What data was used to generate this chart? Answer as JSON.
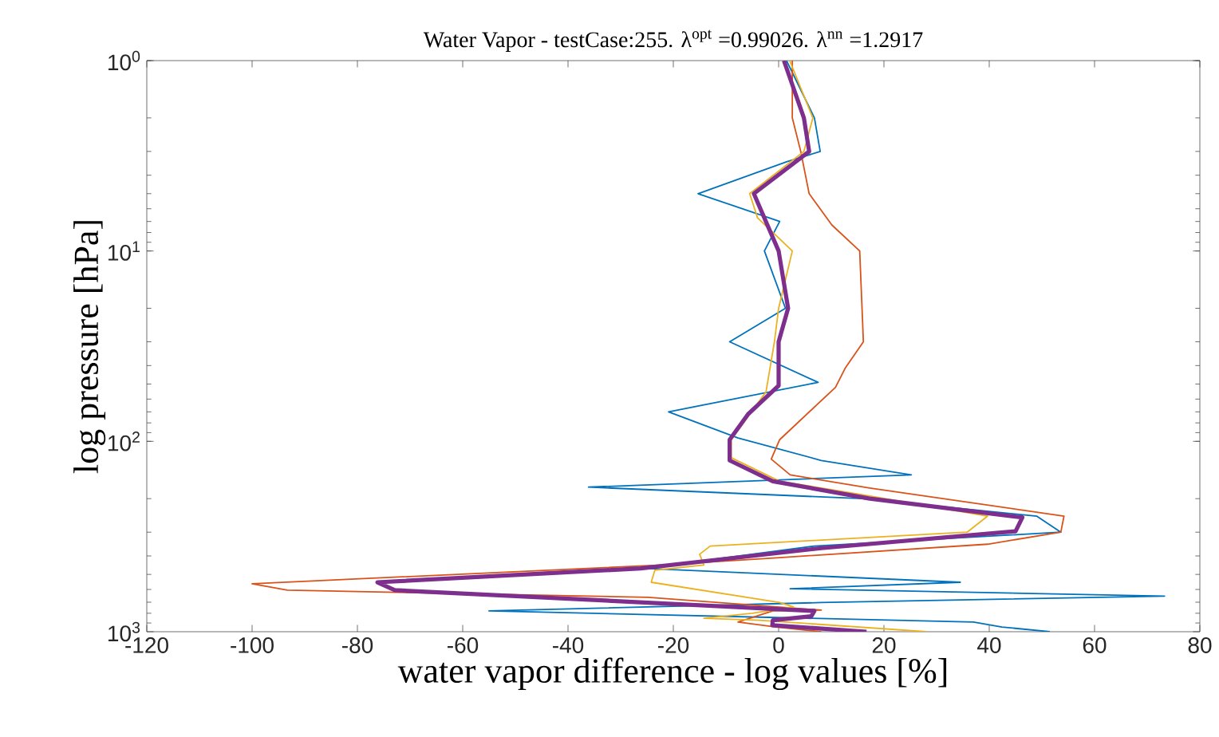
{
  "chart_data": {
    "type": "line",
    "title": "Water Vapor - testCase:255. λ$^{opt}$ =0.99026. λ$^{nn}$ =1.2917",
    "xlabel": "water vapor difference - log values [%]",
    "ylabel": "log pressure [hPa]",
    "log": "y",
    "xlim": [
      -120,
      80
    ],
    "xticks": [
      -120,
      -100,
      -80,
      -60,
      -40,
      -20,
      0,
      20,
      40,
      60,
      80
    ],
    "ylim": [
      1000,
      1
    ],
    "yticks": [
      {
        "value": 1,
        "label": "10$^{0}$"
      },
      {
        "value": 10,
        "label": "10$^{1}$"
      },
      {
        "value": 100,
        "label": "10$^{2}$"
      },
      {
        "value": 1000,
        "label": "10$^{3}$"
      }
    ],
    "series": [
      {
        "color": "#0072bd",
        "x": [
          1.5,
          6.8,
          7.9,
          1.5,
          -15.3,
          0.2,
          -2.7,
          1.3,
          -9.3,
          7.5,
          -20.9,
          -7.7,
          8.1,
          25.2,
          -36.1,
          16,
          49,
          53.6,
          6.8,
          -25.5,
          34.5,
          2.2,
          73.3,
          8.1,
          -55,
          37,
          42.4,
          51.5
        ],
        "values": [
          1,
          2,
          3,
          3.4,
          5,
          7,
          10,
          20,
          30,
          49,
          70,
          96,
          126,
          150,
          174,
          200,
          247,
          300,
          355,
          465,
          550,
          595,
          650,
          703,
          778,
          890,
          945,
          1000
        ]
      },
      {
        "color": "#d95319",
        "x": [
          2.6,
          2.6,
          4.2,
          5.8,
          10.1,
          15.4,
          16.1,
          12.7,
          10.8,
          0.2,
          -1.4,
          2.2,
          17.3,
          54.2,
          53.6,
          39.7,
          0.2,
          -22.2,
          -100,
          -93.3,
          -24.8,
          8.1,
          -1.1,
          -7.7,
          -0.5,
          8.1
        ],
        "values": [
          1,
          2,
          3,
          5,
          7.3,
          10,
          30,
          41,
          52,
          98,
          124,
          150,
          176,
          247,
          300,
          347,
          408,
          446,
          560,
          605,
          660,
          770,
          778,
          890,
          945,
          1000
        ]
      },
      {
        "color": "#edb120",
        "x": [
          2.1,
          6.5,
          4.8,
          -5.5,
          -4,
          2.6,
          0,
          -0.8,
          -2.4,
          -9,
          -9,
          0.2,
          16,
          39.7,
          35.8,
          -13,
          -15,
          -14.2,
          -23.5,
          -24.2,
          0.2,
          2.8,
          -5,
          -14.2,
          -3.7,
          28
        ],
        "values": [
          1,
          2,
          3,
          5,
          6.7,
          10,
          20,
          30,
          55,
          98,
          122,
          162,
          191,
          247,
          300,
          355,
          392,
          446,
          475,
          550,
          703,
          740,
          800,
          850,
          870,
          1000
        ]
      },
      {
        "color": "#7e2f8e",
        "x": [
          1,
          4.8,
          5.8,
          -4.7,
          0,
          1.8,
          0,
          0,
          -5.8,
          -9.3,
          -9.3,
          -1.1,
          17.3,
          46.3,
          45,
          8.1,
          -26.2,
          -76.2,
          -72.9,
          6.8,
          6.2,
          -1.1,
          -1.2,
          16.7
        ],
        "values": [
          1,
          2,
          3,
          5,
          10,
          20,
          30,
          51,
          72,
          98,
          126,
          162,
          200,
          251,
          297,
          364,
          465,
          550,
          605,
          778,
          830,
          870,
          925,
          1000
        ]
      }
    ]
  }
}
